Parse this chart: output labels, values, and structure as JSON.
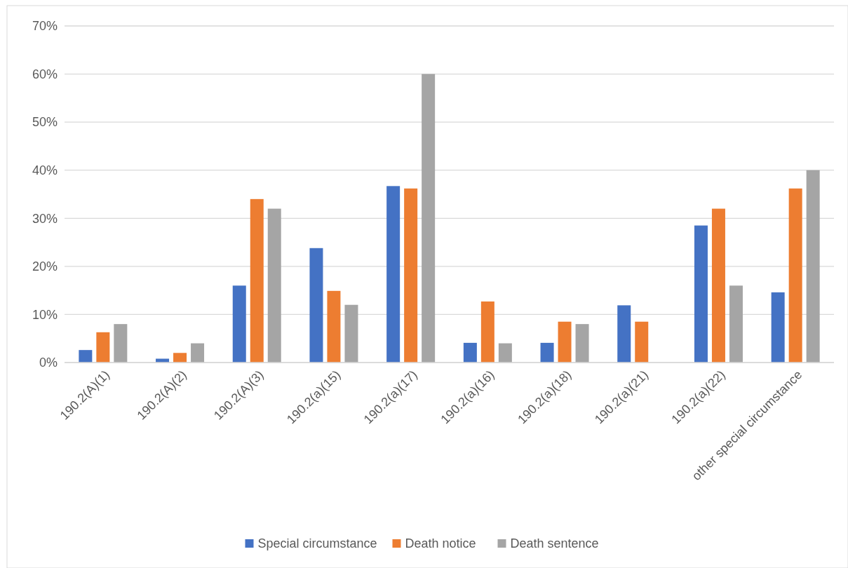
{
  "chart_data": {
    "type": "bar",
    "categories": [
      "190.2(A)(1)",
      "190.2(A)(2)",
      "190.2(A)(3)",
      "190.2(a)(15)",
      "190.2(a)(17)",
      "190.2(a)(16)",
      "190.2(a)(18)",
      "190.2(a)(21)",
      "190.2(a)(22)",
      "other special circumstance"
    ],
    "series": [
      {
        "name": "Special circumstance",
        "color": "#4472c4",
        "values": [
          2.6,
          0.8,
          16,
          23.8,
          36.7,
          4.1,
          4.1,
          11.9,
          28.5,
          14.6
        ]
      },
      {
        "name": "Death notice",
        "color": "#ed7d31",
        "values": [
          6.3,
          2,
          34,
          14.9,
          36.2,
          12.7,
          8.5,
          8.5,
          32,
          36.2
        ]
      },
      {
        "name": "Death sentence",
        "color": "#a5a5a5",
        "values": [
          8,
          4,
          32,
          12,
          60,
          4,
          8,
          0,
          16,
          40
        ]
      }
    ],
    "ylim": [
      0,
      70
    ],
    "yticks": [
      {
        "value": 0,
        "label": "0%"
      },
      {
        "value": 10,
        "label": "10%"
      },
      {
        "value": 20,
        "label": "20%"
      },
      {
        "value": 30,
        "label": "30%"
      },
      {
        "value": 40,
        "label": "40%"
      },
      {
        "value": 50,
        "label": "50%"
      },
      {
        "value": 60,
        "label": "60%"
      },
      {
        "value": 70,
        "label": "70%"
      }
    ],
    "grid": "y",
    "legend": "bottom"
  }
}
